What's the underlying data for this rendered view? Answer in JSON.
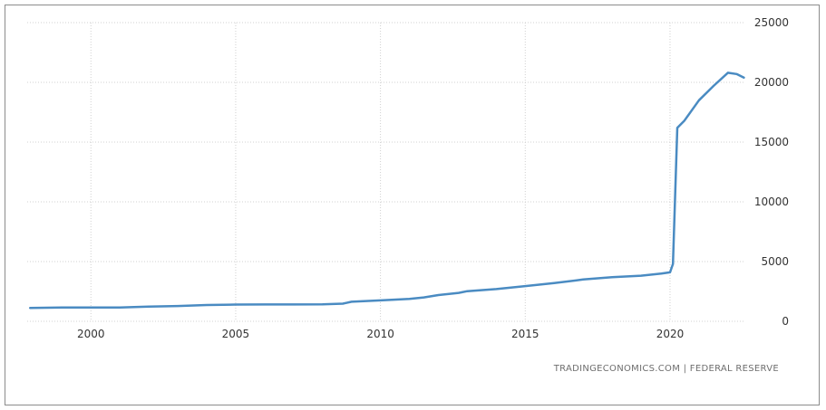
{
  "chart_data": {
    "type": "line",
    "title": "",
    "xlabel": "",
    "ylabel": "",
    "xlim": [
      1997.8,
      2022.6
    ],
    "ylim": [
      0,
      25000
    ],
    "grid": true,
    "x_ticks": [
      {
        "value": 2000,
        "label": "2000"
      },
      {
        "value": 2005,
        "label": "2005"
      },
      {
        "value": 2010,
        "label": "2010"
      },
      {
        "value": 2015,
        "label": "2015"
      },
      {
        "value": 2020,
        "label": "2020"
      }
    ],
    "y_ticks": [
      {
        "value": 0,
        "label": "0"
      },
      {
        "value": 5000,
        "label": "5000"
      },
      {
        "value": 10000,
        "label": "10000"
      },
      {
        "value": 15000,
        "label": "15000"
      },
      {
        "value": 20000,
        "label": "20000"
      },
      {
        "value": 25000,
        "label": "25000"
      }
    ],
    "series": [
      {
        "color": "#4a8bc2",
        "x": [
          1997.9,
          1999.0,
          2000.0,
          2001.0,
          2002.0,
          2003.0,
          2004.0,
          2005.0,
          2006.0,
          2007.0,
          2008.0,
          2008.7,
          2009.0,
          2010.0,
          2011.0,
          2011.5,
          2012.0,
          2012.7,
          2013.0,
          2014.0,
          2015.0,
          2016.0,
          2017.0,
          2018.0,
          2019.0,
          2019.7,
          2020.0,
          2020.1,
          2020.25,
          2020.5,
          2021.0,
          2021.5,
          2022.0,
          2022.3,
          2022.55
        ],
        "y": [
          1120,
          1150,
          1160,
          1150,
          1230,
          1280,
          1360,
          1400,
          1410,
          1410,
          1420,
          1480,
          1640,
          1750,
          1870,
          2000,
          2200,
          2380,
          2520,
          2700,
          2950,
          3200,
          3500,
          3700,
          3820,
          4000,
          4100,
          4800,
          16200,
          16800,
          18500,
          19700,
          20800,
          20700,
          20400
        ]
      }
    ],
    "source": "TRADINGECONOMICS.COM  |  FEDERAL RESERVE"
  }
}
